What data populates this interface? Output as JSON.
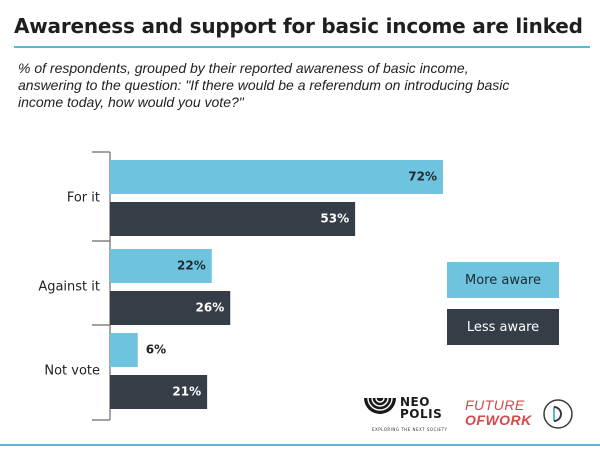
{
  "colors": {
    "more_aware": "#6ec3df",
    "less_aware": "#353d46",
    "accent_rule": "#5ab8d6",
    "brand_red": "#d24a49"
  },
  "chart_data": {
    "type": "bar",
    "orientation": "horizontal",
    "title": "Awareness and support for basic income are linked",
    "subtitle": "% of respondents, grouped by their reported awareness of basic income, answering to the question: \"If there would be a referendum on introducing basic income today, how would you vote?\"",
    "categories": [
      "For it",
      "Against it",
      "Not vote"
    ],
    "series": [
      {
        "name": "More aware",
        "values": [
          72,
          22,
          6
        ],
        "labels": [
          "72%",
          "22%",
          "6%"
        ]
      },
      {
        "name": "Less aware",
        "values": [
          53,
          26,
          21
        ],
        "labels": [
          "53%",
          "26%",
          "21%"
        ]
      }
    ],
    "xlim": [
      0,
      80
    ],
    "xlabel": "",
    "ylabel": "",
    "legend_position": "right"
  },
  "legend": {
    "more": "More aware",
    "less": "Less aware"
  },
  "logos": {
    "neo_polis_line1": "NEO",
    "neo_polis_line2": "POLIS",
    "neo_polis_tagline": "EXPLORING THE NEXT SOCIETY",
    "future_of_work_line1": "FUTURE",
    "future_of_work_line2": "OFWORK",
    "d_logo_icon": "d-circle-icon"
  }
}
